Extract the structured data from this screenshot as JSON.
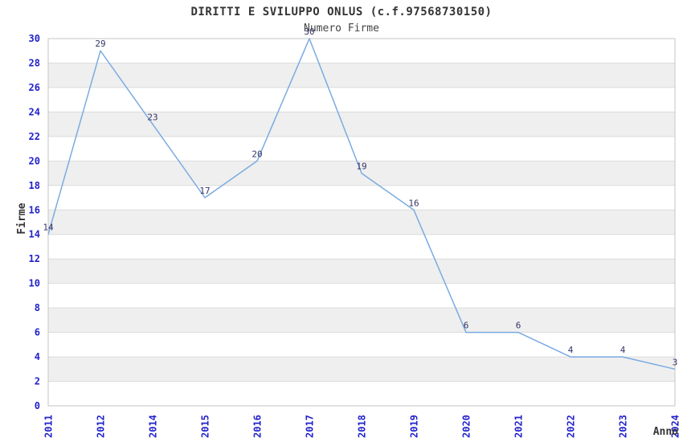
{
  "header": {
    "title": "DIRITTI E SVILUPPO ONLUS (c.f.97568730150)",
    "subtitle": "Numero Firme"
  },
  "chart_data": {
    "type": "line",
    "title": "DIRITTI E SVILUPPO ONLUS (c.f.97568730150)",
    "subtitle": "Numero Firme",
    "xlabel": "Anno",
    "ylabel": "Firme",
    "categories": [
      "2011",
      "2012",
      "2014",
      "2015",
      "2016",
      "2017",
      "2018",
      "2019",
      "2020",
      "2021",
      "2022",
      "2023",
      "2024"
    ],
    "values": [
      14,
      29,
      23,
      17,
      20,
      30,
      19,
      16,
      6,
      6,
      4,
      4,
      3
    ],
    "ylim": [
      0,
      30
    ],
    "ytick_step": 2,
    "grid": "horizontal alternating white/gray bands every 2 units with light gridlines on even values",
    "legend": "none",
    "point_markers": false,
    "x_tick_rotation": 90,
    "colors": {
      "line": "#7aabe2",
      "tick_label": "#2222cc",
      "value_label": "#333366",
      "text": "#333333",
      "band": "#efefef",
      "gridline": "#dcdcdc",
      "plot_border": "#c6c6c6",
      "background": "#ffffff"
    }
  }
}
